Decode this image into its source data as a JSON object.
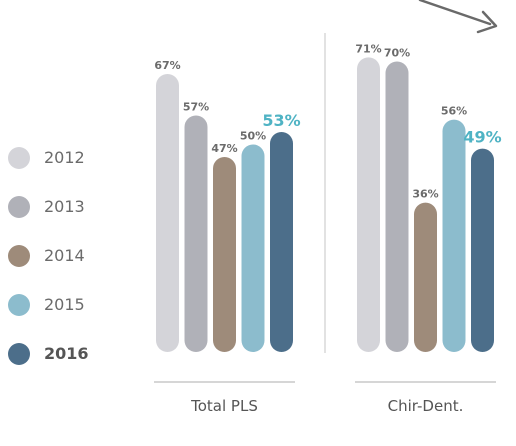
{
  "chart_data": {
    "type": "bar",
    "categories": [
      "Total PLS",
      "Chir-Dent."
    ],
    "series": [
      {
        "name": "2012",
        "values": [
          67,
          71
        ],
        "labels": [
          "67%",
          "71%"
        ],
        "color": "#d4d4d9"
      },
      {
        "name": "2013",
        "values": [
          57,
          70
        ],
        "labels": [
          "57%",
          "70%"
        ],
        "color": "#b0b1b8"
      },
      {
        "name": "2014",
        "values": [
          47,
          36
        ],
        "labels": [
          "47%",
          "36%"
        ],
        "color": "#9e8b7a"
      },
      {
        "name": "2015",
        "values": [
          50,
          56
        ],
        "labels": [
          "50%",
          "56%"
        ],
        "color": "#8cbccd"
      },
      {
        "name": "2016",
        "values": [
          53,
          49
        ],
        "labels": [
          "53%",
          "49%"
        ],
        "color": "#4c6e8a"
      }
    ],
    "highlight_series": "2016",
    "highlight_label_color": "#4fb3c4",
    "ylim": [
      0,
      100
    ],
    "grid": false,
    "legend_placement": "left"
  }
}
